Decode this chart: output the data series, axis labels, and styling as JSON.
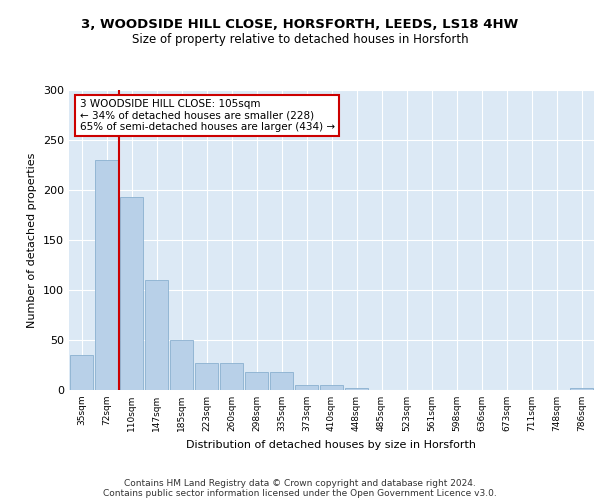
{
  "title_line1": "3, WOODSIDE HILL CLOSE, HORSFORTH, LEEDS, LS18 4HW",
  "title_line2": "Size of property relative to detached houses in Horsforth",
  "xlabel": "Distribution of detached houses by size in Horsforth",
  "ylabel": "Number of detached properties",
  "bin_labels": [
    "35sqm",
    "72sqm",
    "110sqm",
    "147sqm",
    "185sqm",
    "223sqm",
    "260sqm",
    "298sqm",
    "335sqm",
    "373sqm",
    "410sqm",
    "448sqm",
    "485sqm",
    "523sqm",
    "561sqm",
    "598sqm",
    "636sqm",
    "673sqm",
    "711sqm",
    "748sqm",
    "786sqm"
  ],
  "bar_heights": [
    35,
    230,
    193,
    110,
    50,
    27,
    27,
    18,
    18,
    5,
    5,
    2,
    0,
    0,
    0,
    0,
    0,
    0,
    0,
    0,
    2
  ],
  "bar_color": "#b8d0e8",
  "bar_edge_color": "#8ab0d0",
  "vline_x": 1.5,
  "vline_color": "#cc0000",
  "annotation_text": "3 WOODSIDE HILL CLOSE: 105sqm\n← 34% of detached houses are smaller (228)\n65% of semi-detached houses are larger (434) →",
  "annotation_box_color": "#ffffff",
  "annotation_box_edge": "#cc0000",
  "ylim": [
    0,
    300
  ],
  "yticks": [
    0,
    50,
    100,
    150,
    200,
    250,
    300
  ],
  "bg_color": "#dce9f5",
  "footer_line1": "Contains HM Land Registry data © Crown copyright and database right 2024.",
  "footer_line2": "Contains public sector information licensed under the Open Government Licence v3.0."
}
